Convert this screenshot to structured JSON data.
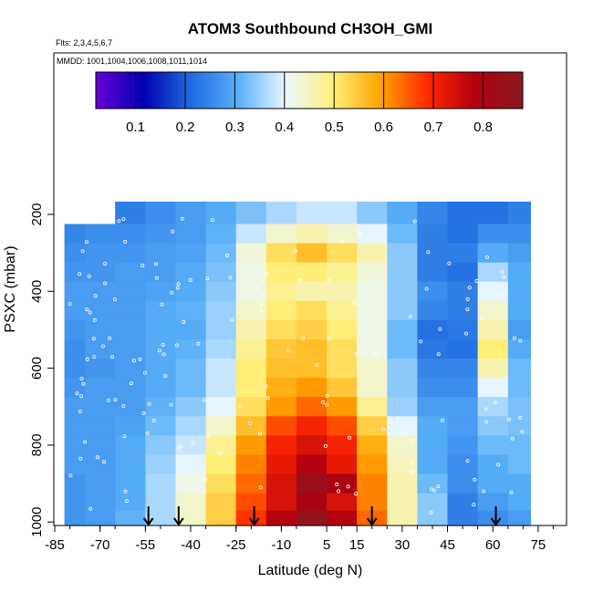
{
  "chart_data": {
    "type": "heatmap",
    "title": "ATOM3 Southbound CH3OH_GMI",
    "flights_note": "Flts: 2,3,4,5,6,7",
    "dates_note": "MMDD: 1001,1004,1006,1008,1011,1014",
    "xlabel": "Latitude (deg N)",
    "ylabel": "PSXC (mbar)",
    "xlim": [
      -85,
      85
    ],
    "ylim": [
      1005,
      160
    ],
    "x_ticks": [
      "-85",
      "-70",
      "-55",
      "-40",
      "-25",
      "-10",
      "5",
      "15",
      "30",
      "45",
      "60",
      "75"
    ],
    "y_ticks": [
      "200",
      "400",
      "600",
      "800",
      "1000"
    ],
    "colorbar": {
      "range": [
        0.02,
        0.88
      ],
      "ticks": [
        "0.1",
        "0.2",
        "0.3",
        "0.4",
        "0.5",
        "0.6",
        "0.7",
        "0.8"
      ],
      "colors": [
        "#6a00d8",
        "#0000b0",
        "#1e6ae0",
        "#58b0f8",
        "#eaf7ff",
        "#fff07a",
        "#ffa400",
        "#ff2800",
        "#b00010",
        "#8a1a20"
      ]
    },
    "pressure_levels": [
      200,
      250,
      300,
      350,
      400,
      450,
      500,
      550,
      600,
      650,
      700,
      750,
      800,
      850,
      900,
      950,
      990
    ],
    "latitude_bins": [
      -80,
      -70,
      -60,
      -50,
      -40,
      -30,
      -20,
      -10,
      0,
      10,
      20,
      30,
      40,
      50,
      60,
      70
    ],
    "values": [
      [
        0.22,
        0.23,
        0.24,
        0.26,
        0.28,
        0.3,
        0.33,
        0.36,
        0.38,
        0.38,
        0.34,
        0.3,
        0.25,
        0.22,
        0.22,
        0.24
      ],
      [
        0.25,
        0.26,
        0.26,
        0.27,
        0.28,
        0.31,
        0.38,
        0.44,
        0.46,
        0.44,
        0.4,
        0.32,
        0.24,
        0.22,
        0.26,
        0.26
      ],
      [
        0.26,
        0.27,
        0.27,
        0.28,
        0.29,
        0.32,
        0.43,
        0.52,
        0.56,
        0.52,
        0.46,
        0.34,
        0.24,
        0.24,
        0.3,
        0.28
      ],
      [
        0.27,
        0.27,
        0.28,
        0.28,
        0.3,
        0.33,
        0.42,
        0.5,
        0.5,
        0.48,
        0.43,
        0.34,
        0.24,
        0.22,
        0.36,
        0.3
      ],
      [
        0.28,
        0.28,
        0.28,
        0.29,
        0.3,
        0.34,
        0.42,
        0.48,
        0.46,
        0.46,
        0.42,
        0.34,
        0.26,
        0.24,
        0.4,
        0.3
      ],
      [
        0.28,
        0.28,
        0.28,
        0.3,
        0.31,
        0.35,
        0.44,
        0.5,
        0.52,
        0.48,
        0.42,
        0.34,
        0.25,
        0.24,
        0.44,
        0.3
      ],
      [
        0.27,
        0.28,
        0.28,
        0.3,
        0.3,
        0.35,
        0.46,
        0.52,
        0.54,
        0.5,
        0.42,
        0.32,
        0.22,
        0.23,
        0.46,
        0.28
      ],
      [
        0.26,
        0.28,
        0.28,
        0.3,
        0.31,
        0.36,
        0.48,
        0.55,
        0.56,
        0.52,
        0.42,
        0.32,
        0.23,
        0.22,
        0.5,
        0.3
      ],
      [
        0.26,
        0.27,
        0.28,
        0.3,
        0.32,
        0.38,
        0.5,
        0.56,
        0.56,
        0.52,
        0.44,
        0.34,
        0.25,
        0.25,
        0.46,
        0.32
      ],
      [
        0.27,
        0.28,
        0.28,
        0.3,
        0.32,
        0.38,
        0.5,
        0.58,
        0.6,
        0.55,
        0.44,
        0.34,
        0.26,
        0.26,
        0.4,
        0.32
      ],
      [
        0.28,
        0.28,
        0.28,
        0.31,
        0.34,
        0.4,
        0.52,
        0.6,
        0.64,
        0.6,
        0.48,
        0.35,
        0.28,
        0.28,
        0.36,
        0.33
      ],
      [
        0.28,
        0.28,
        0.29,
        0.32,
        0.36,
        0.44,
        0.56,
        0.66,
        0.7,
        0.66,
        0.54,
        0.4,
        0.3,
        0.28,
        0.34,
        0.33
      ],
      [
        0.28,
        0.28,
        0.3,
        0.34,
        0.38,
        0.48,
        0.6,
        0.7,
        0.74,
        0.7,
        0.58,
        0.44,
        0.3,
        0.27,
        0.32,
        0.32
      ],
      [
        0.28,
        0.28,
        0.3,
        0.35,
        0.4,
        0.5,
        0.62,
        0.72,
        0.78,
        0.72,
        0.6,
        0.45,
        0.3,
        0.26,
        0.3,
        0.32
      ],
      [
        0.27,
        0.28,
        0.3,
        0.36,
        0.42,
        0.52,
        0.64,
        0.74,
        0.84,
        0.8,
        0.62,
        0.46,
        0.32,
        0.26,
        0.3,
        0.3
      ],
      [
        0.27,
        0.28,
        0.3,
        0.36,
        0.44,
        0.54,
        0.66,
        0.74,
        0.8,
        0.74,
        0.62,
        0.46,
        0.34,
        0.24,
        0.28,
        0.3
      ],
      [
        0.27,
        0.28,
        0.31,
        0.36,
        0.44,
        0.54,
        0.68,
        0.78,
        0.86,
        0.78,
        0.64,
        0.46,
        0.34,
        0.24,
        0.26,
        0.28
      ]
    ],
    "arrow_latitudes": [
      -54,
      -44,
      -19,
      20,
      61
    ]
  }
}
